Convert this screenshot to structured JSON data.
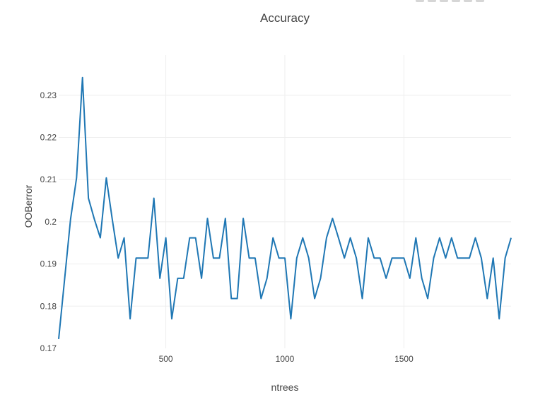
{
  "chart_data": {
    "type": "line",
    "title": "Accuracy",
    "xlabel": "ntrees",
    "ylabel": "OOBerror",
    "xlim": [
      50,
      1950
    ],
    "ylim": [
      0.17,
      0.2375
    ],
    "xticks": [
      500,
      1000,
      1500
    ],
    "xtick_labels": [
      "500",
      "1000",
      "1500"
    ],
    "yticks": [
      0.17,
      0.18,
      0.19,
      0.2,
      0.21,
      0.22,
      0.23
    ],
    "ytick_labels": [
      "0.17",
      "0.18",
      "0.19",
      "0.2",
      "0.21",
      "0.22",
      "0.23"
    ],
    "grid": true,
    "legend": "none",
    "colors": {
      "line": "#1f77b4",
      "grid": "#eeeeee",
      "text": "#444444"
    },
    "series": [
      {
        "x": [
          50,
          75,
          100,
          125,
          150,
          175,
          200,
          225,
          250,
          275,
          300,
          325,
          350,
          375,
          400,
          425,
          450,
          475,
          500,
          525,
          550,
          575,
          600,
          625,
          650,
          675,
          700,
          725,
          750,
          775,
          800,
          825,
          850,
          875,
          900,
          925,
          950,
          975,
          1000,
          1025,
          1050,
          1075,
          1100,
          1125,
          1150,
          1175,
          1200,
          1225,
          1250,
          1275,
          1300,
          1325,
          1350,
          1375,
          1400,
          1425,
          1450,
          1475,
          1500,
          1525,
          1550,
          1575,
          1600,
          1625,
          1650,
          1675,
          1700,
          1725,
          1750,
          1775,
          1800,
          1825,
          1850,
          1875,
          1900,
          1925,
          1950
        ],
        "y": [
          0.1722,
          0.1864,
          0.2006,
          0.2104,
          0.2342,
          0.2056,
          0.2006,
          0.1962,
          0.2104,
          0.2006,
          0.1914,
          0.1962,
          0.177,
          0.1914,
          0.1914,
          0.1914,
          0.2056,
          0.1866,
          0.1962,
          0.177,
          0.1866,
          0.1866,
          0.1962,
          0.1962,
          0.1866,
          0.2008,
          0.1914,
          0.1914,
          0.2008,
          0.1818,
          0.1818,
          0.2008,
          0.1914,
          0.1914,
          0.1818,
          0.1866,
          0.1962,
          0.1914,
          0.1914,
          0.177,
          0.1914,
          0.1962,
          0.1914,
          0.1818,
          0.1866,
          0.1962,
          0.2008,
          0.1962,
          0.1914,
          0.1962,
          0.1914,
          0.1818,
          0.1962,
          0.1914,
          0.1914,
          0.1866,
          0.1914,
          0.1914,
          0.1914,
          0.1866,
          0.1962,
          0.1866,
          0.1818,
          0.1914,
          0.1962,
          0.1914,
          0.1962,
          0.1914,
          0.1914,
          0.1914,
          0.1962,
          0.1914,
          0.1818,
          0.1914,
          0.177,
          0.1914,
          0.1962
        ]
      }
    ]
  }
}
